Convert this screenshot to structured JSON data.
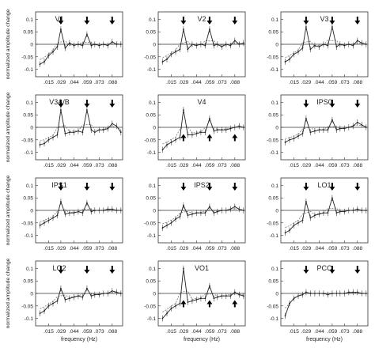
{
  "ylabel": "normalized amplitude change",
  "xlabel": "frequency (Hz)",
  "chart_data": {
    "type": "line",
    "x_ticks": [
      ".015",
      ".029",
      ".044",
      ".059",
      ".073",
      ".088"
    ],
    "y_ticks": [
      "0.1",
      "0.05",
      "0",
      "-0.05",
      "-0.1"
    ],
    "ylim": [
      -0.13,
      0.13
    ],
    "xlim": [
      0,
      0.1
    ],
    "x": [
      0.005,
      0.01,
      0.015,
      0.02,
      0.025,
      0.029,
      0.034,
      0.039,
      0.044,
      0.049,
      0.054,
      0.059,
      0.064,
      0.068,
      0.073,
      0.078,
      0.083,
      0.088,
      0.093,
      0.098
    ],
    "panels": [
      {
        "title": "V1",
        "arrows": [
          {
            "x": 0.029,
            "dir": "down"
          },
          {
            "x": 0.059,
            "dir": "down"
          },
          {
            "x": 0.088,
            "dir": "down"
          }
        ],
        "values": [
          -0.08,
          -0.07,
          -0.045,
          -0.03,
          -0.01,
          0.06,
          -0.015,
          0.005,
          -0.005,
          0.0,
          -0.005,
          0.04,
          -0.005,
          0.0,
          -0.005,
          0.0,
          -0.005,
          0.01,
          0.0,
          0.0
        ]
      },
      {
        "title": "V2",
        "arrows": [
          {
            "x": 0.029,
            "dir": "down"
          },
          {
            "x": 0.059,
            "dir": "down"
          },
          {
            "x": 0.088,
            "dir": "down"
          }
        ],
        "values": [
          -0.07,
          -0.06,
          -0.04,
          -0.03,
          -0.02,
          0.06,
          -0.02,
          0.0,
          -0.005,
          0.0,
          -0.005,
          0.06,
          -0.005,
          0.0,
          -0.01,
          0.0,
          -0.005,
          0.015,
          0.0,
          0.005
        ]
      },
      {
        "title": "V3",
        "arrows": [
          {
            "x": 0.029,
            "dir": "down"
          },
          {
            "x": 0.059,
            "dir": "down"
          },
          {
            "x": 0.088,
            "dir": "down"
          }
        ],
        "values": [
          -0.07,
          -0.06,
          -0.04,
          -0.03,
          -0.015,
          0.07,
          -0.02,
          -0.005,
          -0.01,
          0.0,
          -0.005,
          0.07,
          -0.01,
          0.0,
          -0.005,
          0.0,
          -0.005,
          0.015,
          0.005,
          0.0
        ]
      },
      {
        "title": "V3A/B",
        "arrows": [
          {
            "x": 0.029,
            "dir": "down"
          },
          {
            "x": 0.059,
            "dir": "down"
          },
          {
            "x": 0.088,
            "dir": "down"
          }
        ],
        "values": [
          -0.07,
          -0.065,
          -0.05,
          -0.04,
          -0.03,
          0.07,
          -0.025,
          -0.02,
          -0.02,
          -0.015,
          -0.02,
          0.07,
          -0.01,
          -0.02,
          -0.01,
          -0.01,
          -0.005,
          0.015,
          0.005,
          -0.02
        ]
      },
      {
        "title": "V4",
        "arrows": [
          {
            "x": 0.029,
            "dir": "up"
          },
          {
            "x": 0.059,
            "dir": "up"
          },
          {
            "x": 0.088,
            "dir": "up"
          }
        ],
        "values": [
          -0.09,
          -0.07,
          -0.06,
          -0.05,
          -0.04,
          0.07,
          -0.03,
          -0.03,
          -0.025,
          -0.02,
          -0.02,
          0.035,
          -0.015,
          -0.01,
          -0.01,
          -0.01,
          -0.005,
          0.0,
          0.005,
          0.0
        ]
      },
      {
        "title": "IPS0",
        "arrows": [
          {
            "x": 0.029,
            "dir": "down"
          },
          {
            "x": 0.059,
            "dir": "down"
          },
          {
            "x": 0.088,
            "dir": "down"
          }
        ],
        "values": [
          -0.06,
          -0.05,
          -0.045,
          -0.035,
          -0.025,
          0.035,
          -0.02,
          -0.015,
          -0.01,
          -0.01,
          -0.01,
          0.03,
          -0.01,
          -0.005,
          -0.005,
          0.0,
          0.005,
          0.02,
          0.01,
          0.0
        ]
      },
      {
        "title": "IPS1",
        "arrows": [
          {
            "x": 0.029,
            "dir": "down"
          },
          {
            "x": 0.059,
            "dir": "down"
          },
          {
            "x": 0.088,
            "dir": "down"
          }
        ],
        "values": [
          -0.06,
          -0.05,
          -0.04,
          -0.03,
          -0.02,
          0.035,
          -0.015,
          -0.01,
          -0.01,
          -0.005,
          -0.01,
          0.03,
          -0.005,
          0.0,
          0.0,
          0.0,
          0.005,
          0.005,
          0.0,
          0.0
        ]
      },
      {
        "title": "IPS2",
        "arrows": [
          {
            "x": 0.029,
            "dir": "down"
          },
          {
            "x": 0.059,
            "dir": "down"
          },
          {
            "x": 0.088,
            "dir": "down"
          }
        ],
        "values": [
          -0.07,
          -0.06,
          -0.05,
          -0.035,
          -0.025,
          0.02,
          -0.02,
          -0.015,
          -0.01,
          -0.01,
          -0.01,
          0.015,
          -0.01,
          -0.005,
          0.0,
          0.0,
          0.005,
          0.015,
          0.005,
          0.0
        ]
      },
      {
        "title": "LO1",
        "arrows": [
          {
            "x": 0.029,
            "dir": "down"
          },
          {
            "x": 0.059,
            "dir": "down"
          },
          {
            "x": 0.088,
            "dir": "down"
          }
        ],
        "values": [
          -0.09,
          -0.08,
          -0.06,
          -0.05,
          -0.04,
          0.035,
          -0.03,
          -0.02,
          -0.015,
          -0.01,
          -0.01,
          0.05,
          -0.01,
          -0.005,
          -0.005,
          0.0,
          0.0,
          0.005,
          0.0,
          0.0
        ]
      },
      {
        "title": "LO2",
        "arrows": [
          {
            "x": 0.029,
            "dir": "down"
          },
          {
            "x": 0.059,
            "dir": "down"
          },
          {
            "x": 0.088,
            "dir": "down"
          }
        ],
        "values": [
          -0.08,
          -0.07,
          -0.05,
          -0.04,
          -0.03,
          0.02,
          -0.025,
          -0.02,
          -0.015,
          -0.01,
          -0.015,
          0.02,
          -0.01,
          -0.005,
          -0.005,
          0.0,
          0.0,
          0.01,
          0.005,
          0.0
        ]
      },
      {
        "title": "VO1",
        "arrows": [
          {
            "x": 0.029,
            "dir": "up"
          },
          {
            "x": 0.059,
            "dir": "up"
          },
          {
            "x": 0.088,
            "dir": "up"
          }
        ],
        "values": [
          -0.1,
          -0.08,
          -0.06,
          -0.05,
          -0.04,
          0.1,
          -0.035,
          -0.03,
          -0.025,
          -0.02,
          -0.02,
          0.03,
          -0.02,
          -0.015,
          -0.01,
          -0.01,
          -0.01,
          0.005,
          -0.005,
          -0.01
        ]
      },
      {
        "title": "PCC",
        "arrows": [
          {
            "x": 0.029,
            "dir": "down"
          },
          {
            "x": 0.059,
            "dir": "down"
          },
          {
            "x": 0.088,
            "dir": "down"
          }
        ],
        "values": [
          -0.09,
          -0.04,
          -0.02,
          -0.01,
          -0.005,
          0.005,
          0.0,
          0.0,
          0.0,
          0.0,
          -0.005,
          0.0,
          0.0,
          0.0,
          0.0,
          0.005,
          0.005,
          0.005,
          0.0,
          0.0
        ]
      }
    ]
  }
}
